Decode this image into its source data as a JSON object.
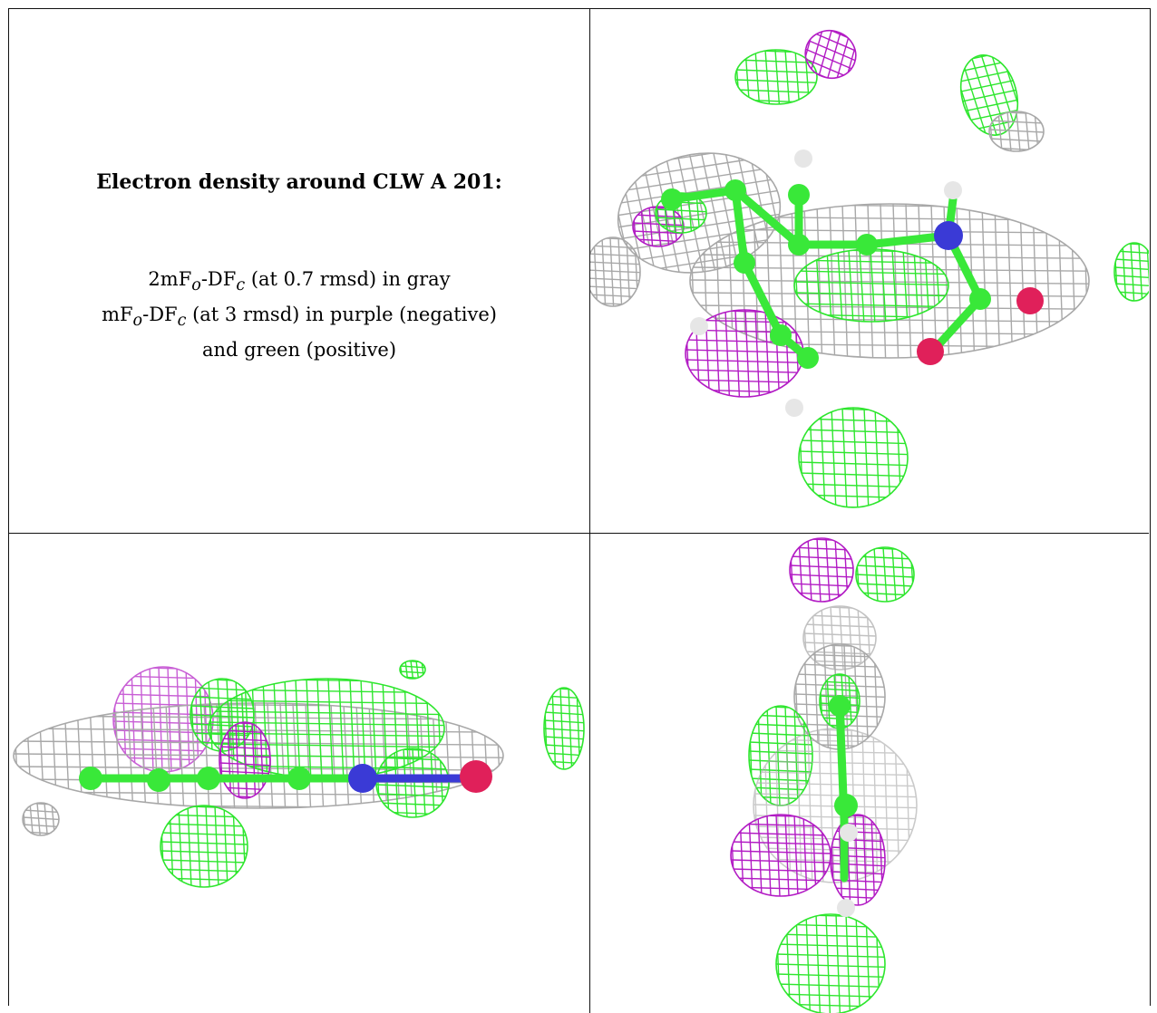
{
  "caption": {
    "title": "Electron density around CLW A 201:",
    "line1": "2mF",
    "line1_sub1": "o",
    "line1_mid": "-DF",
    "line1_sub2": "c",
    "line1_rest": " (at 0.7 rmsd) in gray",
    "line2": "mF",
    "line2_sub1": "o",
    "line2_mid": "-DF",
    "line2_sub2": "c",
    "line2_rest": " (at 3 rmsd) in purple (negative)",
    "line3": "and green (positive)"
  },
  "colors": {
    "gray_mesh": "#a8a8a8",
    "negative_mesh": "#b21bc4",
    "positive_mesh": "#2ee62e",
    "carbon": "#39e839",
    "nitrogen": "#3a3ad6",
    "oxygen": "#e0205a",
    "hydrogen": "#e6e6e6"
  },
  "icons": [
    "electron-density-view-top",
    "electron-density-view-side",
    "electron-density-view-end"
  ]
}
